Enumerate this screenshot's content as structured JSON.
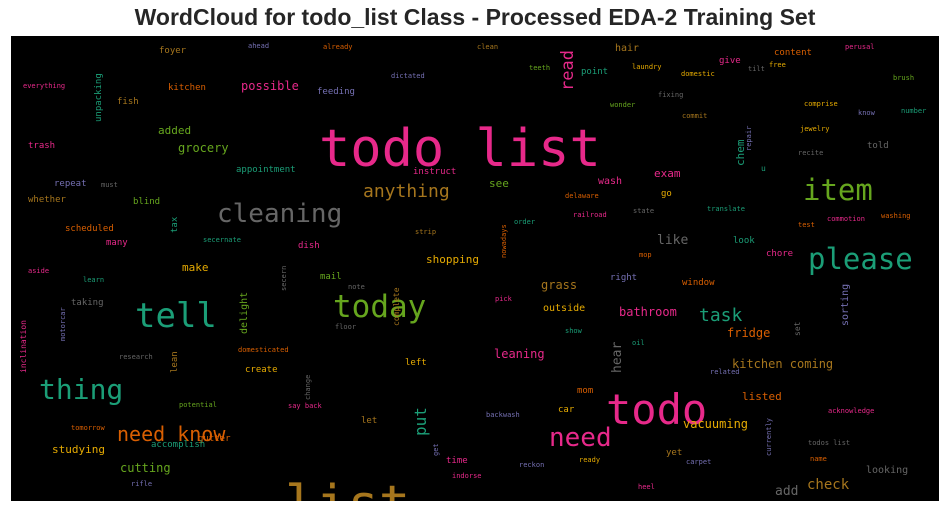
{
  "chart_data": {
    "type": "wordcloud",
    "title": "WordCloud for todo_list Class - Processed EDA-2 Training Set",
    "background_color": "#000000",
    "palette": [
      "#e7298a",
      "#a6761d",
      "#1b9e77",
      "#d95f02",
      "#66a61e",
      "#e6ab02",
      "#7570b3",
      "#666666"
    ],
    "words": [
      {
        "text": "todo list",
        "weight": 62,
        "color": "#e7298a"
      },
      {
        "text": "list",
        "weight": 62,
        "color": "#a6761d"
      },
      {
        "text": "todo",
        "weight": 50,
        "color": "#e7298a"
      },
      {
        "text": "tell",
        "weight": 41,
        "color": "#1b9e77"
      },
      {
        "text": "today",
        "weight": 37,
        "color": "#66a61e"
      },
      {
        "text": "please",
        "weight": 35,
        "color": "#1b9e77"
      },
      {
        "text": "item",
        "weight": 34,
        "color": "#66a61e"
      },
      {
        "text": "thing",
        "weight": 33,
        "color": "#1b9e77"
      },
      {
        "text": "need",
        "weight": 31,
        "color": "#e7298a"
      },
      {
        "text": "cleaning",
        "weight": 31,
        "color": "#666666"
      },
      {
        "text": "need know",
        "weight": 24,
        "color": "#d95f02"
      },
      {
        "text": "anything",
        "weight": 22,
        "color": "#a6761d"
      },
      {
        "text": "task",
        "weight": 22,
        "color": "#1b9e77"
      },
      {
        "text": "read",
        "weight": 20,
        "color": "#e7298a"
      },
      {
        "text": "put",
        "weight": 19,
        "color": "#1b9e77"
      },
      {
        "text": "check",
        "weight": 17,
        "color": "#a6761d"
      },
      {
        "text": "hear",
        "weight": 16,
        "color": "#666666"
      },
      {
        "text": "add",
        "weight": 15,
        "color": "#666666"
      },
      {
        "text": "like",
        "weight": 15,
        "color": "#666666"
      },
      {
        "text": "grocery",
        "weight": 14,
        "color": "#66a61e"
      },
      {
        "text": "possible",
        "weight": 14,
        "color": "#e7298a"
      },
      {
        "text": "leaning",
        "weight": 14,
        "color": "#e7298a"
      },
      {
        "text": "vacuuming",
        "weight": 14,
        "color": "#e6ab02"
      },
      {
        "text": "bathroom",
        "weight": 14,
        "color": "#e7298a"
      },
      {
        "text": "cutting",
        "weight": 14,
        "color": "#66a61e"
      },
      {
        "text": "kitchen coming",
        "weight": 14,
        "color": "#a6761d"
      },
      {
        "text": "fridge",
        "weight": 14,
        "color": "#d95f02"
      },
      {
        "text": "grass",
        "weight": 14,
        "color": "#a6761d"
      },
      {
        "text": "chem",
        "weight": 13,
        "color": "#1b9e77"
      },
      {
        "text": "see",
        "weight": 13,
        "color": "#66a61e"
      },
      {
        "text": "shopping",
        "weight": 13,
        "color": "#e6ab02"
      },
      {
        "text": "make",
        "weight": 13,
        "color": "#e6ab02"
      },
      {
        "text": "listed",
        "weight": 13,
        "color": "#d95f02"
      },
      {
        "text": "studying",
        "weight": 13,
        "color": "#e6ab02"
      },
      {
        "text": "exam",
        "weight": 13,
        "color": "#e7298a"
      },
      {
        "text": "added",
        "weight": 13,
        "color": "#66a61e"
      },
      {
        "text": "delight",
        "weight": 12,
        "color": "#66a61e"
      },
      {
        "text": "wash",
        "weight": 12,
        "color": "#e7298a"
      },
      {
        "text": "sorting",
        "weight": 12,
        "color": "#7570b3"
      },
      {
        "text": "outside",
        "weight": 12,
        "color": "#e6ab02"
      },
      {
        "text": "hair",
        "weight": 12,
        "color": "#a6761d"
      },
      {
        "text": "looking",
        "weight": 12,
        "color": "#666666"
      },
      {
        "text": "unpacking",
        "weight": 11,
        "color": "#1b9e77"
      },
      {
        "text": "trash",
        "weight": 11,
        "color": "#e7298a"
      },
      {
        "text": "fish",
        "weight": 11,
        "color": "#a6761d"
      },
      {
        "text": "kitchen",
        "weight": 11,
        "color": "#d95f02"
      },
      {
        "text": "foyer",
        "weight": 11,
        "color": "#a6761d"
      },
      {
        "text": "feeding",
        "weight": 11,
        "color": "#7570b3"
      },
      {
        "text": "point",
        "weight": 11,
        "color": "#1b9e77"
      },
      {
        "text": "give",
        "weight": 11,
        "color": "#e7298a"
      },
      {
        "text": "content",
        "weight": 11,
        "color": "#d95f02"
      },
      {
        "text": "told",
        "weight": 11,
        "color": "#666666"
      },
      {
        "text": "appointment",
        "weight": 11,
        "color": "#1b9e77"
      },
      {
        "text": "repeat",
        "weight": 11,
        "color": "#7570b3"
      },
      {
        "text": "whether",
        "weight": 11,
        "color": "#a6761d"
      },
      {
        "text": "blind",
        "weight": 11,
        "color": "#66a61e"
      },
      {
        "text": "scheduled",
        "weight": 11,
        "color": "#d95f02"
      },
      {
        "text": "many",
        "weight": 11,
        "color": "#e7298a"
      },
      {
        "text": "tax",
        "weight": 11,
        "color": "#1b9e77"
      },
      {
        "text": "dish",
        "weight": 11,
        "color": "#e7298a"
      },
      {
        "text": "mail",
        "weight": 11,
        "color": "#66a61e"
      },
      {
        "text": "go",
        "weight": 11,
        "color": "#e6ab02"
      },
      {
        "text": "look",
        "weight": 11,
        "color": "#1b9e77"
      },
      {
        "text": "chore",
        "weight": 11,
        "color": "#e7298a"
      },
      {
        "text": "window",
        "weight": 11,
        "color": "#d95f02"
      },
      {
        "text": "right",
        "weight": 11,
        "color": "#7570b3"
      },
      {
        "text": "taking",
        "weight": 11,
        "color": "#666666"
      },
      {
        "text": "lean",
        "weight": 11,
        "color": "#a6761d"
      },
      {
        "text": "create",
        "weight": 11,
        "color": "#e6ab02"
      },
      {
        "text": "left",
        "weight": 11,
        "color": "#e6ab02"
      },
      {
        "text": "let",
        "weight": 11,
        "color": "#a6761d"
      },
      {
        "text": "mom",
        "weight": 11,
        "color": "#d95f02"
      },
      {
        "text": "car",
        "weight": 11,
        "color": "#e6ab02"
      },
      {
        "text": "yet",
        "weight": 11,
        "color": "#a6761d"
      },
      {
        "text": "time",
        "weight": 11,
        "color": "#e7298a"
      },
      {
        "text": "gutter",
        "weight": 11,
        "color": "#d95f02"
      },
      {
        "text": "accomplish",
        "weight": 11,
        "color": "#1b9e77"
      },
      {
        "text": "instruct",
        "weight": 11,
        "color": "#e7298a"
      },
      {
        "text": "inclination",
        "weight": 10,
        "color": "#e7298a"
      },
      {
        "text": "u",
        "weight": 10,
        "color": "#1b9e77"
      },
      {
        "text": "complete",
        "weight": 9,
        "color": "#a6761d"
      },
      {
        "text": "set",
        "weight": 9,
        "color": "#666666"
      },
      {
        "text": "everything",
        "weight": 8,
        "color": "#e7298a"
      },
      {
        "text": "ahead",
        "weight": 8,
        "color": "#7570b3"
      },
      {
        "text": "already",
        "weight": 8,
        "color": "#d95f02"
      },
      {
        "text": "clean",
        "weight": 8,
        "color": "#a6761d"
      },
      {
        "text": "teeth",
        "weight": 8,
        "color": "#66a61e"
      },
      {
        "text": "laundry",
        "weight": 8,
        "color": "#e6ab02"
      },
      {
        "text": "domestic",
        "weight": 8,
        "color": "#e6ab02"
      },
      {
        "text": "tilt",
        "weight": 8,
        "color": "#666666"
      },
      {
        "text": "free",
        "weight": 8,
        "color": "#e6ab02"
      },
      {
        "text": "perusal",
        "weight": 8,
        "color": "#e7298a"
      },
      {
        "text": "brush",
        "weight": 8,
        "color": "#66a61e"
      },
      {
        "text": "dictated",
        "weight": 8,
        "color": "#7570b3"
      },
      {
        "text": "fixing",
        "weight": 8,
        "color": "#666666"
      },
      {
        "text": "wonder",
        "weight": 8,
        "color": "#66a61e"
      },
      {
        "text": "commit",
        "weight": 8,
        "color": "#a6761d"
      },
      {
        "text": "repair",
        "weight": 8,
        "color": "#7570b3"
      },
      {
        "text": "comprise",
        "weight": 8,
        "color": "#e6ab02"
      },
      {
        "text": "know",
        "weight": 8,
        "color": "#7570b3"
      },
      {
        "text": "number",
        "weight": 8,
        "color": "#1b9e77"
      },
      {
        "text": "jewelry",
        "weight": 8,
        "color": "#e6ab02"
      },
      {
        "text": "recite",
        "weight": 8,
        "color": "#666666"
      },
      {
        "text": "must",
        "weight": 8,
        "color": "#666666"
      },
      {
        "text": "delaware",
        "weight": 8,
        "color": "#d95f02"
      },
      {
        "text": "railroad",
        "weight": 8,
        "color": "#e7298a"
      },
      {
        "text": "state",
        "weight": 8,
        "color": "#666666"
      },
      {
        "text": "translate",
        "weight": 8,
        "color": "#1b9e77"
      },
      {
        "text": "test",
        "weight": 8,
        "color": "#d95f02"
      },
      {
        "text": "commotion",
        "weight": 8,
        "color": "#e7298a"
      },
      {
        "text": "washing",
        "weight": 8,
        "color": "#d95f02"
      },
      {
        "text": "order",
        "weight": 8,
        "color": "#1b9e77"
      },
      {
        "text": "strip",
        "weight": 8,
        "color": "#a6761d"
      },
      {
        "text": "nowadays",
        "weight": 8,
        "color": "#d95f02"
      },
      {
        "text": "secernate",
        "weight": 8,
        "color": "#1b9e77"
      },
      {
        "text": "secern",
        "weight": 8,
        "color": "#666666"
      },
      {
        "text": "mop",
        "weight": 8,
        "color": "#d95f02"
      },
      {
        "text": "aside",
        "weight": 8,
        "color": "#e7298a"
      },
      {
        "text": "learn",
        "weight": 8,
        "color": "#1b9e77"
      },
      {
        "text": "motorcar",
        "weight": 8,
        "color": "#7570b3"
      },
      {
        "text": "note",
        "weight": 8,
        "color": "#666666"
      },
      {
        "text": "pick",
        "weight": 8,
        "color": "#e7298a"
      },
      {
        "text": "floor",
        "weight": 8,
        "color": "#666666"
      },
      {
        "text": "show",
        "weight": 8,
        "color": "#1b9e77"
      },
      {
        "text": "oil",
        "weight": 8,
        "color": "#1b9e77"
      },
      {
        "text": "research",
        "weight": 8,
        "color": "#666666"
      },
      {
        "text": "domesticated",
        "weight": 8,
        "color": "#d95f02"
      },
      {
        "text": "change",
        "weight": 8,
        "color": "#666666"
      },
      {
        "text": "related",
        "weight": 8,
        "color": "#7570b3"
      },
      {
        "text": "potential",
        "weight": 8,
        "color": "#66a61e"
      },
      {
        "text": "say back",
        "weight": 8,
        "color": "#e7298a"
      },
      {
        "text": "acknowledge",
        "weight": 8,
        "color": "#e7298a"
      },
      {
        "text": "tomorrow",
        "weight": 8,
        "color": "#d95f02"
      },
      {
        "text": "backwash",
        "weight": 8,
        "color": "#7570b3"
      },
      {
        "text": "todos list",
        "weight": 8,
        "color": "#666666"
      },
      {
        "text": "currently",
        "weight": 8,
        "color": "#7570b3"
      },
      {
        "text": "get",
        "weight": 8,
        "color": "#7570b3"
      },
      {
        "text": "indorse",
        "weight": 8,
        "color": "#e7298a"
      },
      {
        "text": "reckon",
        "weight": 8,
        "color": "#7570b3"
      },
      {
        "text": "ready",
        "weight": 8,
        "color": "#e6ab02"
      },
      {
        "text": "carpet",
        "weight": 8,
        "color": "#7570b3"
      },
      {
        "text": "name",
        "weight": 8,
        "color": "#d95f02"
      },
      {
        "text": "rifle",
        "weight": 8,
        "color": "#7570b3"
      },
      {
        "text": "heel",
        "weight": 8,
        "color": "#e7298a"
      }
    ]
  }
}
